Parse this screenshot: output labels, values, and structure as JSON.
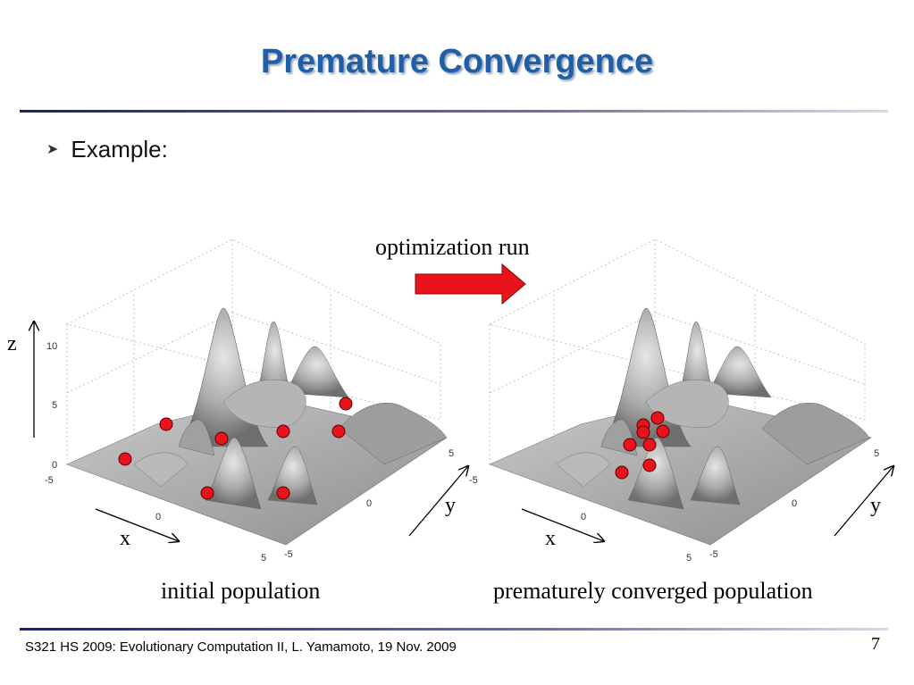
{
  "slide": {
    "title": "Premature Convergence",
    "bullet": "Example:",
    "arrow_label": "optimization run",
    "arrow_color": "#e8131b",
    "caption_left": "initial population",
    "caption_right": "prematurely converged population",
    "footer": "S321 HS 2009: Evolutionary Computation II, L. Yamamoto, 19 Nov. 2009",
    "page_number": "7"
  },
  "axes": {
    "z": "z",
    "x": "x",
    "y": "y",
    "z_ticks": [
      "10",
      "5",
      "0"
    ],
    "x_ticks": [
      "-5",
      "0",
      "5"
    ],
    "y_ticks": [
      "-5",
      "0",
      "5"
    ]
  },
  "colors": {
    "title": "#1f5fa8",
    "surface": "#a8a8a8",
    "marker": "#e8131b"
  }
}
